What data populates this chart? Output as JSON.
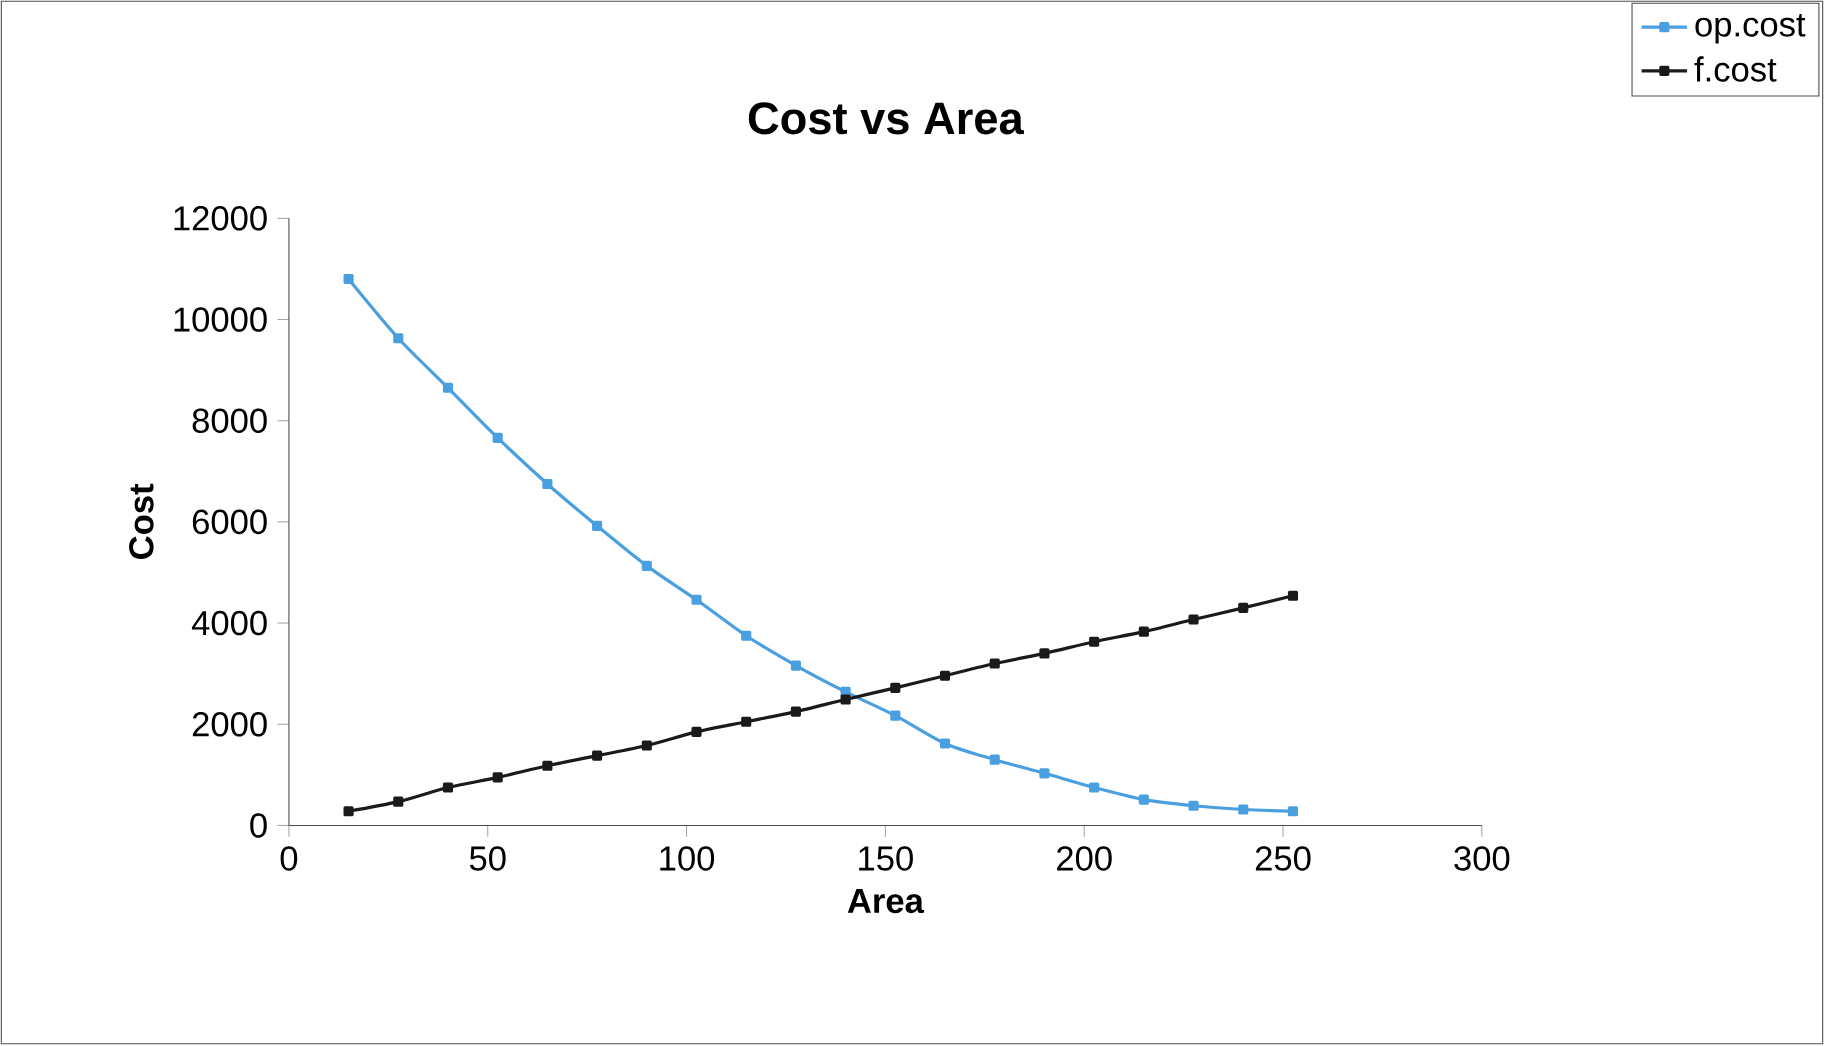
{
  "chart_data": {
    "type": "line",
    "title": "Cost vs Area",
    "xlabel": "Area",
    "ylabel": "Cost",
    "x": [
      15,
      27.5,
      40,
      52.5,
      65,
      77.5,
      90,
      102.5,
      115,
      127.5,
      140,
      152.5,
      165,
      177.5,
      190,
      202.5,
      215,
      227.5,
      240,
      252.5
    ],
    "series": [
      {
        "name": "op.cost",
        "color": "#4a9fe0",
        "values": [
          10800,
          9630,
          8650,
          7660,
          6750,
          5920,
          5130,
          4460,
          3750,
          3160,
          2640,
          2170,
          1620,
          1300,
          1030,
          750,
          510,
          390,
          315,
          280
        ]
      },
      {
        "name": "f.cost",
        "color": "#1a1a1a",
        "values": [
          280,
          470,
          750,
          950,
          1180,
          1380,
          1580,
          1850,
          2050,
          2250,
          2490,
          2720,
          2960,
          3200,
          3400,
          3630,
          3830,
          4070,
          4300,
          4540
        ]
      }
    ],
    "xlim": [
      0,
      300
    ],
    "xticks": [
      0,
      50,
      100,
      150,
      200,
      250,
      300
    ],
    "ylim": [
      0,
      12000
    ],
    "yticks": [
      0,
      2000,
      4000,
      6000,
      8000,
      10000,
      12000
    ],
    "grid": false,
    "legend": "top right",
    "marker": "square",
    "line_style": "solid"
  }
}
